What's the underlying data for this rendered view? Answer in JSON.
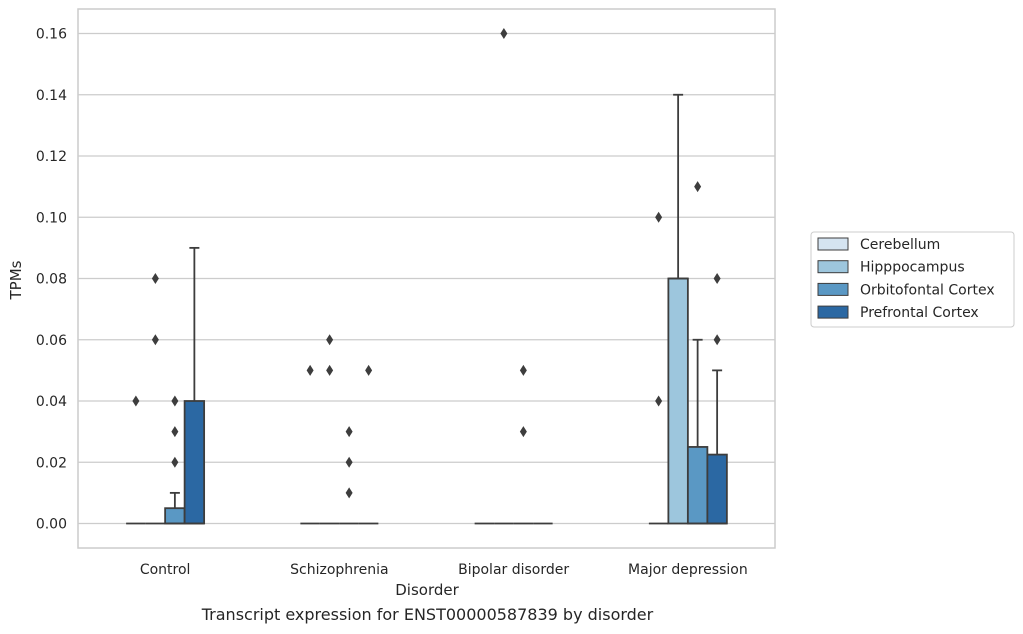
{
  "caption": "Transcript expression for ENST00000587839 by disorder",
  "colors": {
    "background": "#ffffff",
    "grid": "#cccccc",
    "frame": "#cccccc",
    "edge": "#3d3d3d",
    "outlier": "#3d3d3d"
  },
  "chart_data": {
    "type": "box",
    "xlabel": "Disorder",
    "ylabel": "TPMs",
    "ylim": [
      -0.008,
      0.168
    ],
    "yticks": [
      "0.00",
      "0.02",
      "0.04",
      "0.06",
      "0.08",
      "0.10",
      "0.12",
      "0.14",
      "0.16"
    ],
    "grid": true,
    "legend_position": "right",
    "categories": [
      "Control",
      "Schizophrenia",
      "Bipolar disorder",
      "Major depression"
    ],
    "series": [
      {
        "name": "Cerebellum",
        "color": "#d5e4f1",
        "boxes": [
          {
            "q1": 0,
            "median": 0,
            "q3": 0,
            "whisker_low": 0,
            "whisker_high": 0,
            "outliers": [
              0.04
            ]
          },
          {
            "q1": 0,
            "median": 0,
            "q3": 0,
            "whisker_low": 0,
            "whisker_high": 0,
            "outliers": [
              0.05
            ]
          },
          {
            "q1": 0,
            "median": 0,
            "q3": 0,
            "whisker_low": 0,
            "whisker_high": 0,
            "outliers": []
          },
          {
            "q1": 0,
            "median": 0,
            "q3": 0,
            "whisker_low": 0,
            "whisker_high": 0,
            "outliers": [
              0.04,
              0.1
            ]
          }
        ]
      },
      {
        "name": "Hipppocampus",
        "color": "#9dc6dd",
        "boxes": [
          {
            "q1": 0,
            "median": 0,
            "q3": 0,
            "whisker_low": 0,
            "whisker_high": 0,
            "outliers": [
              0.06,
              0.08
            ]
          },
          {
            "q1": 0,
            "median": 0,
            "q3": 0,
            "whisker_low": 0,
            "whisker_high": 0,
            "outliers": [
              0.05,
              0.06
            ]
          },
          {
            "q1": 0,
            "median": 0,
            "q3": 0,
            "whisker_low": 0,
            "whisker_high": 0,
            "outliers": [
              0.16
            ]
          },
          {
            "q1": 0,
            "median": 0.08,
            "q3": 0.08,
            "whisker_low": 0,
            "whisker_high": 0.14,
            "outliers": []
          }
        ]
      },
      {
        "name": "Orbitofontal Cortex",
        "color": "#5a98c4",
        "boxes": [
          {
            "q1": 0,
            "median": 0,
            "q3": 0.005,
            "whisker_low": 0,
            "whisker_high": 0.01,
            "outliers": [
              0.02,
              0.03,
              0.04
            ]
          },
          {
            "q1": 0,
            "median": 0,
            "q3": 0,
            "whisker_low": 0,
            "whisker_high": 0,
            "outliers": [
              0.01,
              0.02,
              0.03
            ]
          },
          {
            "q1": 0,
            "median": 0,
            "q3": 0,
            "whisker_low": 0,
            "whisker_high": 0,
            "outliers": [
              0.03,
              0.05
            ]
          },
          {
            "q1": 0,
            "median": 0,
            "q3": 0.025,
            "whisker_low": 0,
            "whisker_high": 0.06,
            "outliers": [
              0.11
            ]
          }
        ]
      },
      {
        "name": "Prefrontal Cortex",
        "color": "#2b68a3",
        "boxes": [
          {
            "q1": 0,
            "median": 0,
            "q3": 0.04,
            "whisker_low": 0,
            "whisker_high": 0.09,
            "outliers": []
          },
          {
            "q1": 0,
            "median": 0,
            "q3": 0,
            "whisker_low": 0,
            "whisker_high": 0,
            "outliers": [
              0.05
            ]
          },
          {
            "q1": 0,
            "median": 0,
            "q3": 0,
            "whisker_low": 0,
            "whisker_high": 0,
            "outliers": []
          },
          {
            "q1": 0,
            "median": 0,
            "q3": 0.0225,
            "whisker_low": 0,
            "whisker_high": 0.05,
            "outliers": [
              0.06,
              0.08
            ]
          }
        ]
      }
    ]
  }
}
